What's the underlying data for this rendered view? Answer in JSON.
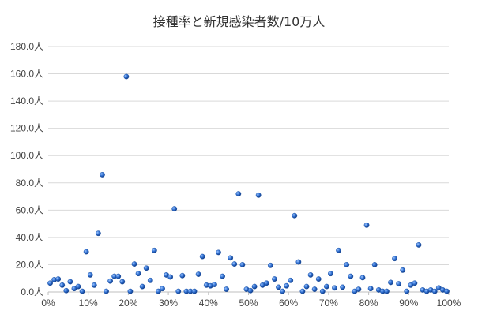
{
  "chart_data": {
    "type": "scatter",
    "title": "接種率と新規感染者数/10万人",
    "xlabel": "",
    "ylabel": "",
    "xlim": [
      0,
      1
    ],
    "ylim": [
      0,
      180
    ],
    "x_ticks": [
      0,
      0.1,
      0.2,
      0.3,
      0.4,
      0.5,
      0.6,
      0.7,
      0.8,
      0.9,
      1.0
    ],
    "x_tick_labels": [
      "0%",
      "10%",
      "20%",
      "30%",
      "40%",
      "50%",
      "60%",
      "70%",
      "80%",
      "90%",
      "100%"
    ],
    "y_ticks": [
      0,
      20,
      40,
      60,
      80,
      100,
      120,
      140,
      160,
      180
    ],
    "y_tick_labels": [
      "0.0人",
      "20.0人",
      "40.0人",
      "60.0人",
      "80.0人",
      "100.0人",
      "120.0人",
      "140.0人",
      "160.0人",
      "180.0人"
    ],
    "grid": "horizontal",
    "legend": "none",
    "marker_color": "#2f6fd0",
    "points": [
      [
        0.005,
        6.5
      ],
      [
        0.015,
        9
      ],
      [
        0.025,
        9.5
      ],
      [
        0.035,
        5
      ],
      [
        0.045,
        1
      ],
      [
        0.055,
        7.5
      ],
      [
        0.065,
        2.5
      ],
      [
        0.075,
        4
      ],
      [
        0.085,
        0.5
      ],
      [
        0.095,
        29.5
      ],
      [
        0.105,
        12.5
      ],
      [
        0.115,
        5
      ],
      [
        0.125,
        43
      ],
      [
        0.135,
        86
      ],
      [
        0.145,
        0.5
      ],
      [
        0.155,
        8
      ],
      [
        0.165,
        11.5
      ],
      [
        0.175,
        11.5
      ],
      [
        0.185,
        7.5
      ],
      [
        0.195,
        158
      ],
      [
        0.205,
        0.5
      ],
      [
        0.215,
        20.5
      ],
      [
        0.225,
        13.5
      ],
      [
        0.235,
        4
      ],
      [
        0.245,
        17.5
      ],
      [
        0.255,
        8.5
      ],
      [
        0.265,
        30.5
      ],
      [
        0.275,
        0.5
      ],
      [
        0.285,
        2.5
      ],
      [
        0.295,
        12.5
      ],
      [
        0.305,
        11
      ],
      [
        0.315,
        61
      ],
      [
        0.325,
        0.5
      ],
      [
        0.335,
        12
      ],
      [
        0.345,
        0.5
      ],
      [
        0.355,
        0.5
      ],
      [
        0.365,
        0.5
      ],
      [
        0.375,
        13
      ],
      [
        0.385,
        26
      ],
      [
        0.395,
        5
      ],
      [
        0.405,
        4.5
      ],
      [
        0.415,
        5.5
      ],
      [
        0.425,
        29
      ],
      [
        0.435,
        11.5
      ],
      [
        0.445,
        2
      ],
      [
        0.455,
        25
      ],
      [
        0.465,
        20.5
      ],
      [
        0.475,
        72
      ],
      [
        0.485,
        20
      ],
      [
        0.495,
        2
      ],
      [
        0.505,
        1
      ],
      [
        0.515,
        4
      ],
      [
        0.525,
        71
      ],
      [
        0.535,
        5
      ],
      [
        0.545,
        6.5
      ],
      [
        0.555,
        19.5
      ],
      [
        0.565,
        9.5
      ],
      [
        0.575,
        3.5
      ],
      [
        0.585,
        0.5
      ],
      [
        0.595,
        4.5
      ],
      [
        0.605,
        8.5
      ],
      [
        0.615,
        56
      ],
      [
        0.625,
        22
      ],
      [
        0.635,
        0.5
      ],
      [
        0.645,
        4
      ],
      [
        0.655,
        12.5
      ],
      [
        0.665,
        2
      ],
      [
        0.675,
        9.5
      ],
      [
        0.685,
        0.5
      ],
      [
        0.695,
        4
      ],
      [
        0.705,
        13.5
      ],
      [
        0.715,
        3
      ],
      [
        0.725,
        30.5
      ],
      [
        0.735,
        3.5
      ],
      [
        0.745,
        20
      ],
      [
        0.755,
        11.5
      ],
      [
        0.765,
        0.5
      ],
      [
        0.775,
        2
      ],
      [
        0.785,
        10.5
      ],
      [
        0.795,
        49
      ],
      [
        0.805,
        2.5
      ],
      [
        0.815,
        20
      ],
      [
        0.825,
        1.5
      ],
      [
        0.835,
        0.5
      ],
      [
        0.845,
        0.5
      ],
      [
        0.855,
        7
      ],
      [
        0.865,
        24.5
      ],
      [
        0.875,
        6
      ],
      [
        0.885,
        16
      ],
      [
        0.895,
        0.5
      ],
      [
        0.905,
        5
      ],
      [
        0.915,
        6.5
      ],
      [
        0.925,
        34.5
      ],
      [
        0.935,
        1.5
      ],
      [
        0.945,
        0.5
      ],
      [
        0.955,
        1.5
      ],
      [
        0.965,
        0.5
      ],
      [
        0.975,
        3
      ],
      [
        0.985,
        1.5
      ],
      [
        0.995,
        0.5
      ]
    ]
  }
}
